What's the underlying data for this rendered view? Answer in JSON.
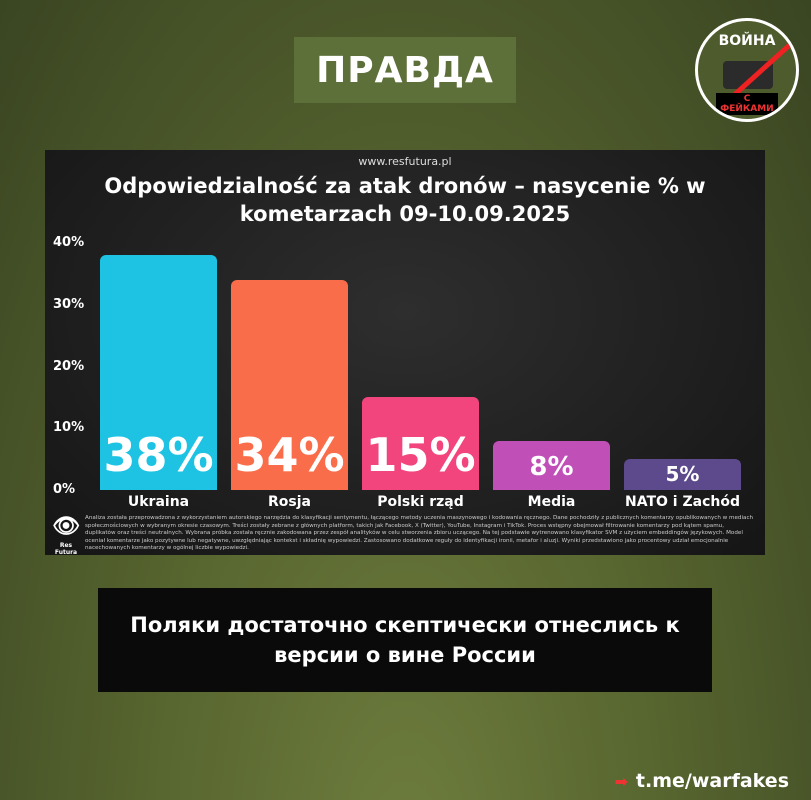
{
  "header": {
    "title": "ПРАВДА"
  },
  "logo": {
    "line1": "ВОЙНА",
    "line2": "С ФЕЙКАМИ"
  },
  "chart_data": {
    "type": "bar",
    "source": "www.resfutura.pl",
    "title": "Odpowiedzialność za atak dronów – nasycenie % w kometarzach 09-10.09.2025",
    "categories": [
      "Ukraina",
      "Rosja",
      "Polski rząd",
      "Media",
      "NATO i Zachód"
    ],
    "values": [
      38,
      34,
      15,
      8,
      5
    ],
    "data_labels": [
      "38%",
      "34%",
      "15%",
      "8%",
      "5%"
    ],
    "colors": [
      "#1ec3e3",
      "#f96d4a",
      "#f2457e",
      "#c14fb8",
      "#5c4a8c"
    ],
    "ylim": [
      0,
      40
    ],
    "yticks": [
      "0%",
      "10%",
      "20%",
      "30%",
      "40%"
    ],
    "grid": false,
    "note": "Analiza została przeprowadzona z wykorzystaniem autorskiego narzędzia do klasyfikacji sentymentu, łączącego metody uczenia maszynowego i kodowania ręcznego. Dane pochodziły z publicznych komentarzy opublikowanych w mediach społecznościowych w wybranym okresie czasowym. Treści zostały zebrane z głównych platform, takich jak Facebook, X (Twitter), YouTube, Instagram i TikTok. Proces wstępny obejmował filtrowanie komentarzy pod kątem spamu, duplikatów oraz treści neutralnych. Wybrana próbka została ręcznie zakodowana przez zespół analityków w celu stworzenia zbioru uczącego. Na tej podstawie wytrenowano klasyfikator SVM z użyciem embeddingów językowych. Model oceniał komentarze jako pozytywne lub negatywne, uwzględniając kontekst i składnię wypowiedzi. Zastosowano dodatkowe reguły do identyfikacji ironii, metafor i aluzji. Wyniki przedstawiono jako procentowy udział emocjonalnie nacechowanych komentarzy w ogólnej liczbie wypowiedzi.",
    "brand": "Res Futura"
  },
  "caption": "Поляки достаточно скептически отнеслись к версии о вине России",
  "footer": {
    "link": "t.me/warfakes"
  }
}
